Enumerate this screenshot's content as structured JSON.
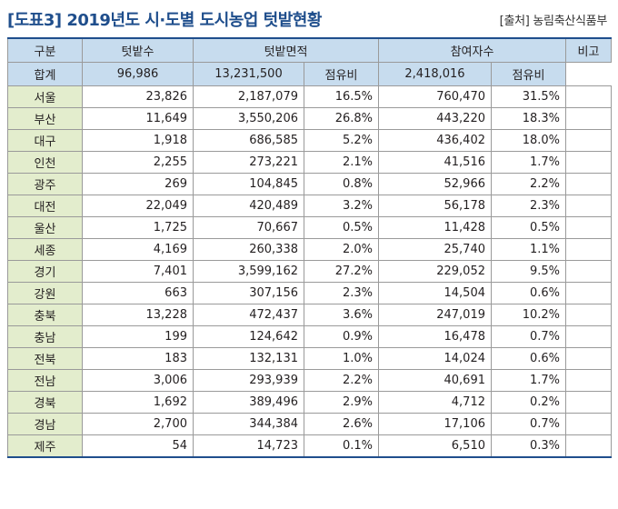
{
  "title": "[도표3] 2019년도 시·도별 도시농업 텃밭현황",
  "source": "[출처] 농림축산식품부",
  "header": {
    "region": "구분",
    "farms": "텃밭수",
    "area": "텃밭면적",
    "participants": "참여자수",
    "note": "비고",
    "share": "점유비"
  },
  "total": {
    "label": "합계",
    "farms": "96,986",
    "area": "13,231,500",
    "participants": "2,418,016"
  },
  "rows": [
    {
      "region": "서울",
      "farms": "23,826",
      "area": "2,187,079",
      "area_share": "16.5%",
      "participants": "760,470",
      "part_share": "31.5%"
    },
    {
      "region": "부산",
      "farms": "11,649",
      "area": "3,550,206",
      "area_share": "26.8%",
      "participants": "443,220",
      "part_share": "18.3%"
    },
    {
      "region": "대구",
      "farms": "1,918",
      "area": "686,585",
      "area_share": "5.2%",
      "participants": "436,402",
      "part_share": "18.0%"
    },
    {
      "region": "인천",
      "farms": "2,255",
      "area": "273,221",
      "area_share": "2.1%",
      "participants": "41,516",
      "part_share": "1.7%"
    },
    {
      "region": "광주",
      "farms": "269",
      "area": "104,845",
      "area_share": "0.8%",
      "participants": "52,966",
      "part_share": "2.2%"
    },
    {
      "region": "대전",
      "farms": "22,049",
      "area": "420,489",
      "area_share": "3.2%",
      "participants": "56,178",
      "part_share": "2.3%"
    },
    {
      "region": "울산",
      "farms": "1,725",
      "area": "70,667",
      "area_share": "0.5%",
      "participants": "11,428",
      "part_share": "0.5%"
    },
    {
      "region": "세종",
      "farms": "4,169",
      "area": "260,338",
      "area_share": "2.0%",
      "participants": "25,740",
      "part_share": "1.1%"
    },
    {
      "region": "경기",
      "farms": "7,401",
      "area": "3,599,162",
      "area_share": "27.2%",
      "participants": "229,052",
      "part_share": "9.5%"
    },
    {
      "region": "강원",
      "farms": "663",
      "area": "307,156",
      "area_share": "2.3%",
      "participants": "14,504",
      "part_share": "0.6%"
    },
    {
      "region": "충북",
      "farms": "13,228",
      "area": "472,437",
      "area_share": "3.6%",
      "participants": "247,019",
      "part_share": "10.2%"
    },
    {
      "region": "충남",
      "farms": "199",
      "area": "124,642",
      "area_share": "0.9%",
      "participants": "16,478",
      "part_share": "0.7%"
    },
    {
      "region": "전북",
      "farms": "183",
      "area": "132,131",
      "area_share": "1.0%",
      "participants": "14,024",
      "part_share": "0.6%"
    },
    {
      "region": "전남",
      "farms": "3,006",
      "area": "293,939",
      "area_share": "2.2%",
      "participants": "40,691",
      "part_share": "1.7%"
    },
    {
      "region": "경북",
      "farms": "1,692",
      "area": "389,496",
      "area_share": "2.9%",
      "participants": "4,712",
      "part_share": "0.2%"
    },
    {
      "region": "경남",
      "farms": "2,700",
      "area": "344,384",
      "area_share": "2.6%",
      "participants": "17,106",
      "part_share": "0.7%"
    },
    {
      "region": "제주",
      "farms": "54",
      "area": "14,723",
      "area_share": "0.1%",
      "participants": "6,510",
      "part_share": "0.3%"
    }
  ],
  "colors": {
    "title": "#1f4e8c",
    "header_bg": "#c7dcee",
    "region_bg": "#e3edcd",
    "rule": "#1f4e8c"
  }
}
